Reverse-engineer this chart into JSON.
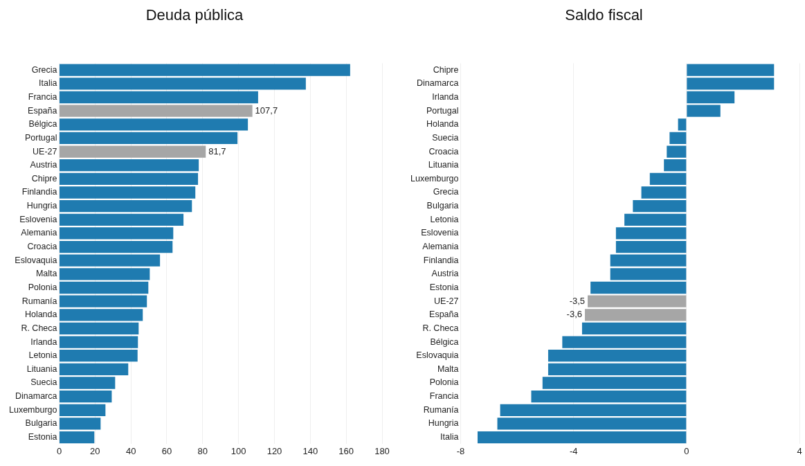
{
  "chart_data": [
    {
      "type": "bar",
      "orientation": "horizontal",
      "title": "Deuda pública",
      "categories": [
        "Grecia",
        "Italia",
        "Francia",
        "España",
        "Bélgica",
        "Portugal",
        "UE-27",
        "Austria",
        "Chipre",
        "Finlandia",
        "Hungria",
        "Eslovenia",
        "Alemania",
        "Croacia",
        "Eslovaquia",
        "Malta",
        "Polonia",
        "Rumanía",
        "Holanda",
        "R. Checa",
        "Irlanda",
        "Letonia",
        "Lituania",
        "Suecia",
        "Dinamarca",
        "Luxemburgo",
        "Bulgaria",
        "Estonia"
      ],
      "values": [
        162.2,
        137.5,
        110.9,
        107.7,
        105.2,
        99.4,
        81.7,
        77.8,
        77.4,
        75.9,
        74,
        69.3,
        63.6,
        63.2,
        56.2,
        50.5,
        49.7,
        48.9,
        46.6,
        44.3,
        43.9,
        43.7,
        38.5,
        31.2,
        29.3,
        25.8,
        23.1,
        19.6
      ],
      "value_labels": [
        null,
        null,
        null,
        "107,7",
        null,
        null,
        "81,7",
        null,
        null,
        null,
        null,
        null,
        null,
        null,
        null,
        null,
        null,
        null,
        null,
        null,
        null,
        null,
        null,
        null,
        null,
        null,
        null,
        null
      ],
      "colors": [
        "#1f7bb0",
        "#1f7bb0",
        "#1f7bb0",
        "#a6a6a6",
        "#1f7bb0",
        "#1f7bb0",
        "#a6a6a6",
        "#1f7bb0",
        "#1f7bb0",
        "#1f7bb0",
        "#1f7bb0",
        "#1f7bb0",
        "#1f7bb0",
        "#1f7bb0",
        "#1f7bb0",
        "#1f7bb0",
        "#1f7bb0",
        "#1f7bb0",
        "#1f7bb0",
        "#1f7bb0",
        "#1f7bb0",
        "#1f7bb0",
        "#1f7bb0",
        "#1f7bb0",
        "#1f7bb0",
        "#1f7bb0",
        "#1f7bb0",
        "#1f7bb0"
      ],
      "xlim": [
        0,
        180
      ],
      "xticks": [
        0,
        20,
        40,
        60,
        80,
        100,
        120,
        140,
        160,
        180
      ],
      "grid": "x",
      "legend": false
    },
    {
      "type": "bar",
      "orientation": "horizontal",
      "title": "Saldo fiscal",
      "categories": [
        "Chipre",
        "Dinamarca",
        "Irlanda",
        "Portugal",
        "Holanda",
        "Suecia",
        "Croacia",
        "Lituania",
        "Luxemburgo",
        "Grecia",
        "Bulgaria",
        "Letonia",
        "Eslovenia",
        "Alemania",
        "Finlandia",
        "Austria",
        "Estonia",
        "UE-27",
        "España",
        "R. Checa",
        "Bélgica",
        "Eslovaquia",
        "Malta",
        "Polonia",
        "Francia",
        "Rumanía",
        "Hungria",
        "Italia"
      ],
      "values": [
        3.1,
        3.1,
        1.7,
        1.2,
        -0.3,
        -0.6,
        -0.7,
        -0.8,
        -1.3,
        -1.6,
        -1.9,
        -2.2,
        -2.5,
        -2.5,
        -2.7,
        -2.7,
        -3.4,
        -3.5,
        -3.6,
        -3.7,
        -4.4,
        -4.9,
        -4.9,
        -5.1,
        -5.5,
        -6.6,
        -6.7,
        -7.4
      ],
      "value_labels": [
        null,
        null,
        null,
        null,
        null,
        null,
        null,
        null,
        null,
        null,
        null,
        null,
        null,
        null,
        null,
        null,
        null,
        "-3,5",
        "-3,6",
        null,
        null,
        null,
        null,
        null,
        null,
        null,
        null,
        null
      ],
      "colors": [
        "#1f7bb0",
        "#1f7bb0",
        "#1f7bb0",
        "#1f7bb0",
        "#1f7bb0",
        "#1f7bb0",
        "#1f7bb0",
        "#1f7bb0",
        "#1f7bb0",
        "#1f7bb0",
        "#1f7bb0",
        "#1f7bb0",
        "#1f7bb0",
        "#1f7bb0",
        "#1f7bb0",
        "#1f7bb0",
        "#1f7bb0",
        "#a6a6a6",
        "#a6a6a6",
        "#1f7bb0",
        "#1f7bb0",
        "#1f7bb0",
        "#1f7bb0",
        "#1f7bb0",
        "#1f7bb0",
        "#1f7bb0",
        "#1f7bb0",
        "#1f7bb0"
      ],
      "xlim": [
        -8,
        4
      ],
      "xticks": [
        -8,
        -4,
        0,
        4
      ],
      "grid": "x",
      "legend": false
    }
  ]
}
